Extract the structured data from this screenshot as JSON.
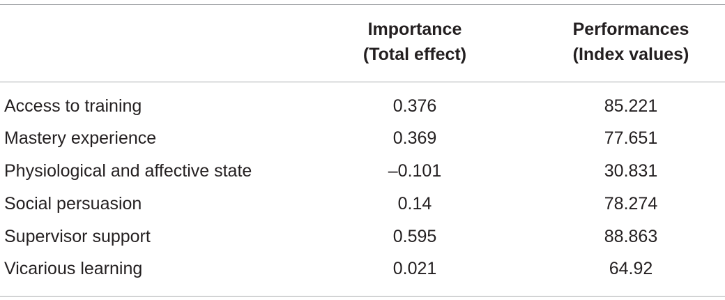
{
  "table": {
    "headers": {
      "importance": [
        "Importance",
        "(Total effect)"
      ],
      "performance": [
        "Performances",
        "(Index values)"
      ]
    },
    "rows": [
      {
        "label": "Access to training",
        "importance": "0.376",
        "performance": "85.221"
      },
      {
        "label": "Mastery experience",
        "importance": "0.369",
        "performance": "77.651"
      },
      {
        "label": "Physiological and affective state",
        "importance": "–0.101",
        "performance": "30.831"
      },
      {
        "label": "Social persuasion",
        "importance": "0.14",
        "performance": "78.274"
      },
      {
        "label": "Supervisor support",
        "importance": "0.595",
        "performance": "88.863"
      },
      {
        "label": "Vicarious learning",
        "importance": "0.021",
        "performance": "64.92"
      }
    ]
  }
}
